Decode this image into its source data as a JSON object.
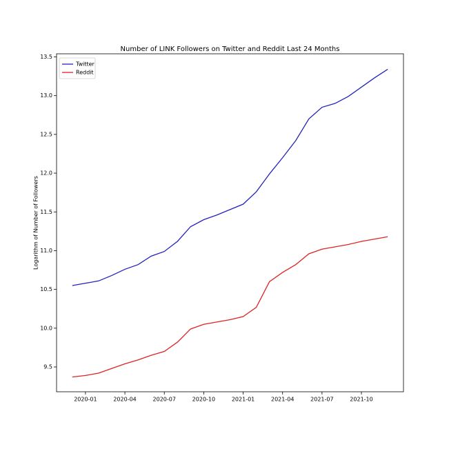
{
  "chart_data": {
    "type": "line",
    "title": "Number of LINK Followers on Twitter and Reddit Last 24 Months",
    "y_label": "Logarithm of Number of Followers",
    "x": [
      "2019-12",
      "2020-01",
      "2020-02",
      "2020-03",
      "2020-04",
      "2020-05",
      "2020-06",
      "2020-07",
      "2020-08",
      "2020-09",
      "2020-10",
      "2020-11",
      "2020-12",
      "2021-01",
      "2021-02",
      "2021-03",
      "2021-04",
      "2021-05",
      "2021-06",
      "2021-07",
      "2021-08",
      "2021-09",
      "2021-10",
      "2021-11",
      "2021-12"
    ],
    "series": [
      {
        "name": "Twitter",
        "color": "#2222bb",
        "values": [
          10.55,
          10.58,
          10.61,
          10.68,
          10.76,
          10.82,
          10.93,
          10.99,
          11.12,
          11.31,
          11.4,
          11.46,
          11.53,
          11.6,
          11.76,
          11.99,
          12.2,
          12.42,
          12.7,
          12.85,
          12.9,
          12.99,
          13.11,
          13.23,
          13.34
        ]
      },
      {
        "name": "Reddit",
        "color": "#dd2222",
        "values": [
          9.37,
          9.39,
          9.42,
          9.48,
          9.54,
          9.59,
          9.65,
          9.7,
          9.82,
          9.99,
          10.05,
          10.08,
          10.11,
          10.15,
          10.27,
          10.6,
          10.72,
          10.82,
          10.96,
          11.02,
          11.05,
          11.08,
          11.12,
          11.15,
          11.18
        ]
      }
    ],
    "xticks": [
      "2020-01",
      "2020-04",
      "2020-07",
      "2020-10",
      "2021-01",
      "2021-04",
      "2021-07",
      "2021-10"
    ],
    "ylim": [
      9.18,
      13.54
    ],
    "yticks": [
      9.5,
      10,
      10.5,
      11,
      11.5,
      12,
      12.5,
      13,
      13.5
    ],
    "legend": "upper-left"
  }
}
